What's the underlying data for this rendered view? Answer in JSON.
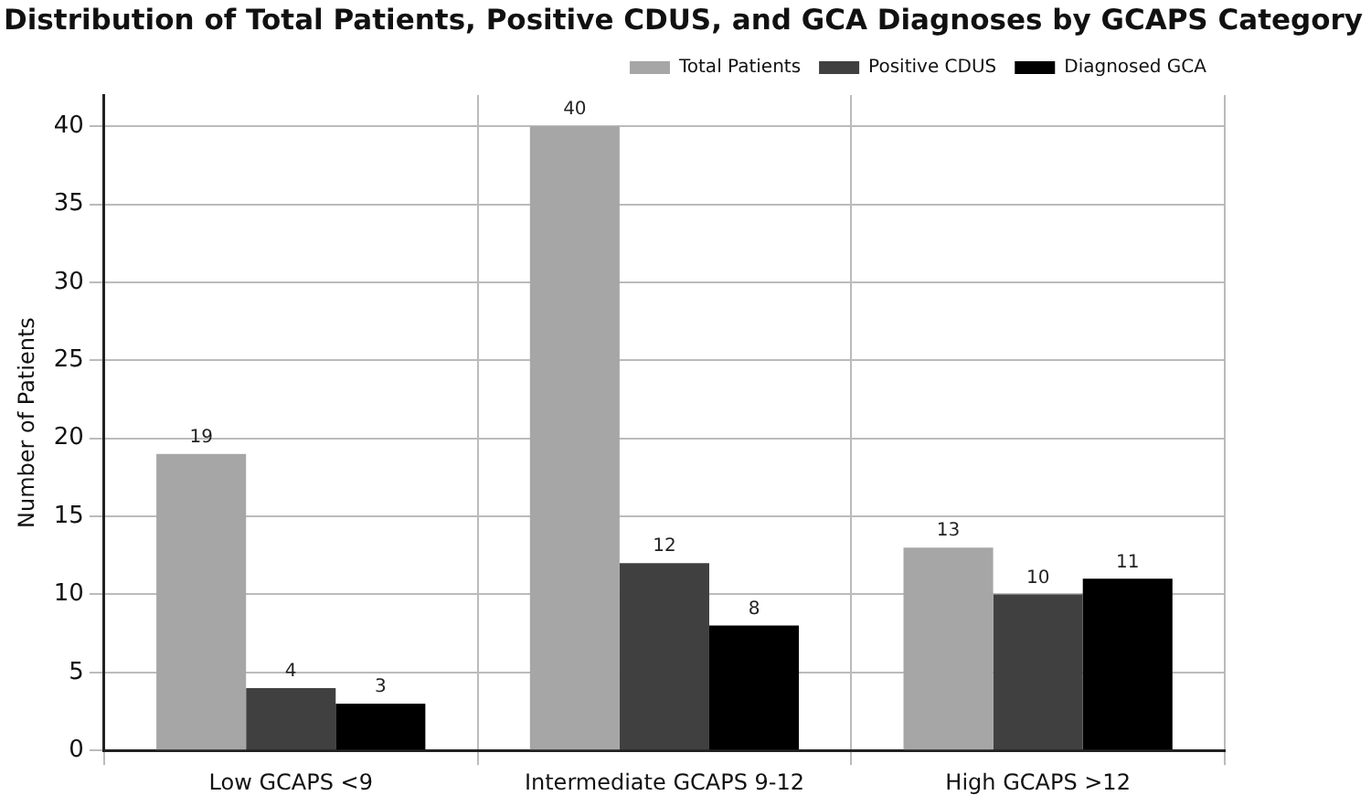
{
  "chart_data": {
    "type": "bar",
    "title": "Distribution of Total Patients, Positive CDUS, and GCA Diagnoses by GCAPS Category",
    "ylabel": "Number of Patients",
    "categories": [
      "Low GCAPS <9",
      "Intermediate GCAPS 9-12",
      "High GCAPS >12"
    ],
    "series": [
      {
        "name": "Total Patients",
        "color": "#a6a6a6",
        "values": [
          19,
          40,
          13
        ]
      },
      {
        "name": "Positive CDUS",
        "color": "#404040",
        "values": [
          4,
          12,
          10
        ]
      },
      {
        "name": "Diagnosed GCA",
        "color": "#000000",
        "values": [
          3,
          8,
          11
        ]
      }
    ],
    "ylim": [
      0,
      42
    ],
    "yticks": [
      0,
      5,
      10,
      15,
      20,
      25,
      30,
      35,
      40
    ],
    "grid": true,
    "legend": "top right",
    "data_labels": true
  }
}
